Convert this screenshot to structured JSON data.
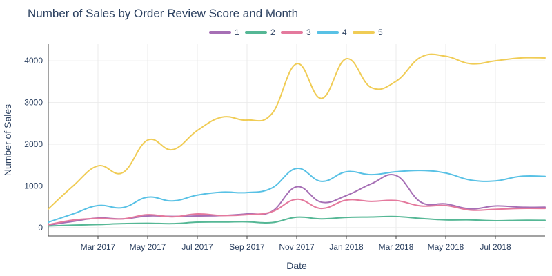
{
  "chart_data": {
    "type": "line",
    "title": "Number of Sales by Order Review Score and Month",
    "xlabel": "Date",
    "ylabel": "Number of Sales",
    "ylim": [
      -200,
      4400
    ],
    "yticks": [
      0,
      1000,
      2000,
      3000,
      4000
    ],
    "x_range": [
      "2017-01",
      "2018-09"
    ],
    "xticks": [
      {
        "value": "2017-03",
        "label": "Mar 2017"
      },
      {
        "value": "2017-05",
        "label": "May 2017"
      },
      {
        "value": "2017-07",
        "label": "Jul 2017"
      },
      {
        "value": "2017-09",
        "label": "Sep 2017"
      },
      {
        "value": "2017-11",
        "label": "Nov 2017"
      },
      {
        "value": "2018-01",
        "label": "Jan 2018"
      },
      {
        "value": "2018-03",
        "label": "Mar 2018"
      },
      {
        "value": "2018-05",
        "label": "May 2018"
      },
      {
        "value": "2018-07",
        "label": "Jul 2018"
      }
    ],
    "x": [
      "2017-01",
      "2017-02",
      "2017-03",
      "2017-04",
      "2017-05",
      "2017-06",
      "2017-07",
      "2017-08",
      "2017-09",
      "2017-10",
      "2017-11",
      "2017-12",
      "2018-01",
      "2018-02",
      "2018-03",
      "2018-04",
      "2018-05",
      "2018-06",
      "2018-07",
      "2018-08",
      "2018-09"
    ],
    "legend_position": "top-center",
    "grid": true,
    "series": [
      {
        "name": "1",
        "color": "#a66fb5",
        "values": [
          60,
          150,
          230,
          210,
          280,
          270,
          280,
          290,
          330,
          390,
          980,
          610,
          770,
          1050,
          1250,
          610,
          570,
          450,
          520,
          490,
          490
        ]
      },
      {
        "name": "2",
        "color": "#55b795",
        "values": [
          40,
          60,
          75,
          95,
          105,
          95,
          130,
          135,
          140,
          120,
          250,
          210,
          245,
          255,
          265,
          220,
          185,
          185,
          165,
          175,
          175
        ]
      },
      {
        "name": "3",
        "color": "#e4799d",
        "values": [
          70,
          180,
          220,
          210,
          310,
          260,
          330,
          290,
          310,
          380,
          680,
          460,
          660,
          630,
          650,
          520,
          530,
          420,
          440,
          460,
          460
        ]
      },
      {
        "name": "4",
        "color": "#58c1e5",
        "values": [
          130,
          330,
          530,
          480,
          730,
          640,
          780,
          850,
          840,
          950,
          1420,
          1110,
          1340,
          1270,
          1340,
          1370,
          1310,
          1140,
          1120,
          1230,
          1230
        ]
      },
      {
        "name": "5",
        "color": "#f0cc55",
        "values": [
          450,
          1000,
          1480,
          1320,
          2100,
          1870,
          2330,
          2650,
          2580,
          2730,
          3930,
          3100,
          4050,
          3360,
          3510,
          4090,
          4110,
          3930,
          4000,
          4070,
          4070
        ]
      }
    ]
  }
}
